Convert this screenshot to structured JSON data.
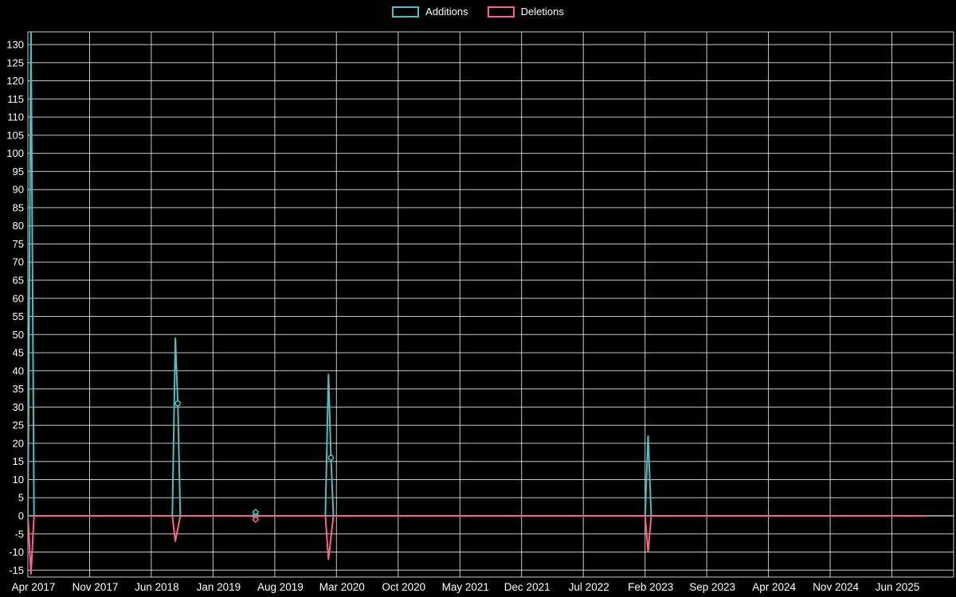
{
  "page": {
    "background": "#000000",
    "text_color": "#ffffff"
  },
  "chart_data": {
    "type": "line",
    "title": "",
    "legend_position": "top-center",
    "grid": true,
    "background": "#000000",
    "x_tick_interval_months": 7,
    "x_ticks": [
      "Apr 2017",
      "Nov 2017",
      "Jun 2018",
      "Jan 2019",
      "Aug 2019",
      "Mar 2020",
      "Oct 2020",
      "May 2021",
      "Dec 2021",
      "Jul 2022",
      "Feb 2023",
      "Sep 2023",
      "Apr 2024",
      "Nov 2024",
      "Jun 2025"
    ],
    "y_ticks": [
      130,
      125,
      120,
      115,
      110,
      105,
      100,
      95,
      90,
      85,
      80,
      75,
      70,
      65,
      60,
      55,
      50,
      45,
      40,
      35,
      30,
      25,
      20,
      15,
      10,
      5,
      0,
      -5,
      -10,
      -15
    ],
    "y_min_label": -15,
    "y_max_label": 130,
    "y_step": 5,
    "series": [
      {
        "name": "Additions",
        "color": "#4bc0c0",
        "points": [
          {
            "t": 0.0,
            "v": 0
          },
          {
            "t": 0.05,
            "v": 134
          },
          {
            "t": 0.1,
            "v": 0
          },
          {
            "t": 2.34,
            "v": 0
          },
          {
            "t": 2.39,
            "v": 49
          },
          {
            "t": 2.43,
            "v": 31,
            "marker": "circle"
          },
          {
            "t": 2.47,
            "v": 0
          },
          {
            "t": 3.64,
            "v": 0
          },
          {
            "t": 3.69,
            "v": 1,
            "marker": "diamond"
          },
          {
            "t": 3.74,
            "v": 0
          },
          {
            "t": 4.82,
            "v": 0
          },
          {
            "t": 4.87,
            "v": 39
          },
          {
            "t": 4.91,
            "v": 16,
            "marker": "circle"
          },
          {
            "t": 4.95,
            "v": 0
          },
          {
            "t": 10.0,
            "v": 0
          },
          {
            "t": 10.05,
            "v": 22
          },
          {
            "t": 10.1,
            "v": 0
          },
          {
            "t": 14.55,
            "v": 0
          }
        ]
      },
      {
        "name": "Deletions",
        "color": "#ff6384",
        "points": [
          {
            "t": 0.0,
            "v": 0
          },
          {
            "t": 0.05,
            "v": -16
          },
          {
            "t": 0.1,
            "v": 0
          },
          {
            "t": 2.34,
            "v": 0
          },
          {
            "t": 2.39,
            "v": -7
          },
          {
            "t": 2.47,
            "v": 0
          },
          {
            "t": 3.64,
            "v": 0
          },
          {
            "t": 3.69,
            "v": -1,
            "marker": "diamond"
          },
          {
            "t": 3.74,
            "v": 0
          },
          {
            "t": 4.82,
            "v": 0
          },
          {
            "t": 4.87,
            "v": -12
          },
          {
            "t": 4.95,
            "v": 0
          },
          {
            "t": 10.0,
            "v": 0
          },
          {
            "t": 10.05,
            "v": -10
          },
          {
            "t": 10.1,
            "v": 0
          },
          {
            "t": 14.55,
            "v": 0
          }
        ]
      }
    ]
  }
}
